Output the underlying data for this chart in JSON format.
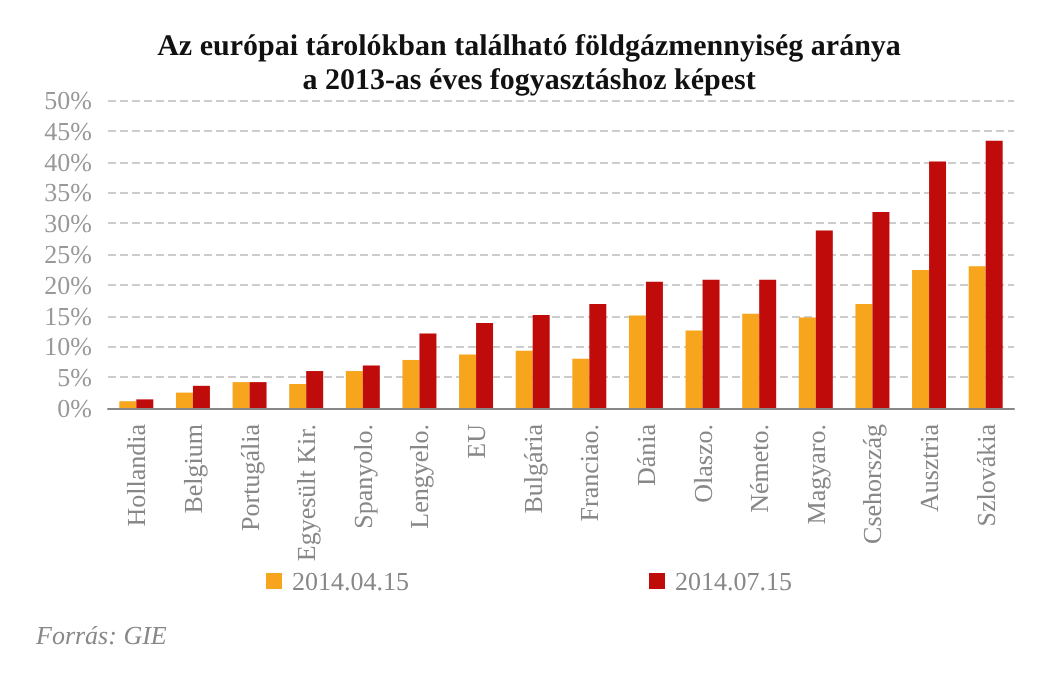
{
  "chart_data": {
    "type": "bar",
    "title": "Az európai tárolókban található földgázmennyiség aránya\na 2013-as éves fogyasztáshoz képest",
    "categories": [
      "Hollandia",
      "Belgium",
      "Portugália",
      "Egyesült Kir.",
      "Spanyolo.",
      "Lengyelo.",
      "EU",
      "Bulgária",
      "Franciao.",
      "Dánia",
      "Olaszo.",
      "Németo.",
      "Magyaro.",
      "Csehország",
      "Ausztria",
      "Szlovákia"
    ],
    "series": [
      {
        "name": "2014.04.15",
        "color": "#f7a51c",
        "values": [
          1.1,
          2.5,
          4.2,
          3.9,
          6.0,
          7.8,
          8.7,
          9.3,
          8.0,
          15.0,
          12.6,
          15.3,
          14.7,
          16.9,
          22.4,
          23.0
        ]
      },
      {
        "name": "2014.07.15",
        "color": "#c00b0b",
        "values": [
          1.4,
          3.6,
          4.2,
          6.0,
          6.9,
          12.1,
          13.8,
          15.1,
          16.9,
          20.5,
          20.8,
          20.8,
          28.8,
          31.8,
          40.0,
          43.4
        ]
      }
    ],
    "ylim": [
      0,
      50
    ],
    "yticks": [
      {
        "value": 0,
        "label": "0%"
      },
      {
        "value": 5,
        "label": "5%"
      },
      {
        "value": 10,
        "label": "10%"
      },
      {
        "value": 15,
        "label": "15%"
      },
      {
        "value": 20,
        "label": "20%"
      },
      {
        "value": 25,
        "label": "25%"
      },
      {
        "value": 30,
        "label": "30%"
      },
      {
        "value": 35,
        "label": "35%"
      },
      {
        "value": 40,
        "label": "40%"
      },
      {
        "value": 45,
        "label": "45%"
      },
      {
        "value": 50,
        "label": "50%"
      }
    ],
    "grid": "y",
    "legend": "bottom",
    "annotations": [
      "Forrás: GIE"
    ]
  }
}
